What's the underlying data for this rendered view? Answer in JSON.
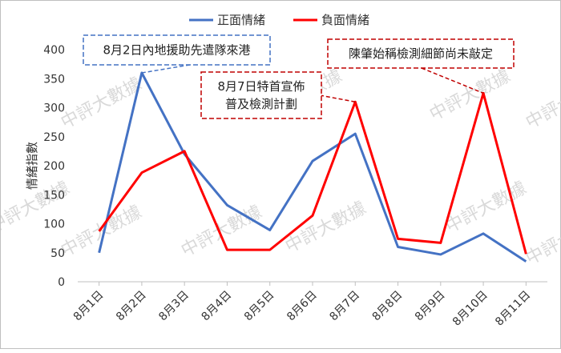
{
  "chart_data": {
    "type": "line",
    "categories": [
      "8月1日",
      "8月2日",
      "8月3日",
      "8月4日",
      "8月5日",
      "8月6日",
      "8月7日",
      "8月8日",
      "8月9日",
      "8月10日",
      "8月11日"
    ],
    "series": [
      {
        "name": "正面情緒",
        "color": "#4472c4",
        "values": [
          50,
          360,
          220,
          132,
          89,
          208,
          255,
          60,
          47,
          83,
          35
        ]
      },
      {
        "name": "負面情緒",
        "color": "#ff0000",
        "values": [
          87,
          188,
          225,
          55,
          55,
          114,
          310,
          74,
          67,
          325,
          48
        ]
      }
    ],
    "ylabel": "情緒指數",
    "xlabel": "",
    "ylim": [
      0,
      400
    ],
    "yticks": [
      0,
      50,
      100,
      150,
      200,
      250,
      300,
      350,
      400
    ],
    "grid": false,
    "legend_position": "top-center",
    "annotations": [
      {
        "lines": [
          "8月2日內地援助先遣隊來港"
        ],
        "color": "#4472c4",
        "target_index": 1
      },
      {
        "lines": [
          "8月7日特首宣佈",
          "普及檢測計劃"
        ],
        "color": "#c00000",
        "target_index": 6
      },
      {
        "lines": [
          "陳肇始稱檢測細節尚未敲定"
        ],
        "color": "#c00000",
        "target_index": 9
      }
    ],
    "watermark": "中評大數據"
  }
}
